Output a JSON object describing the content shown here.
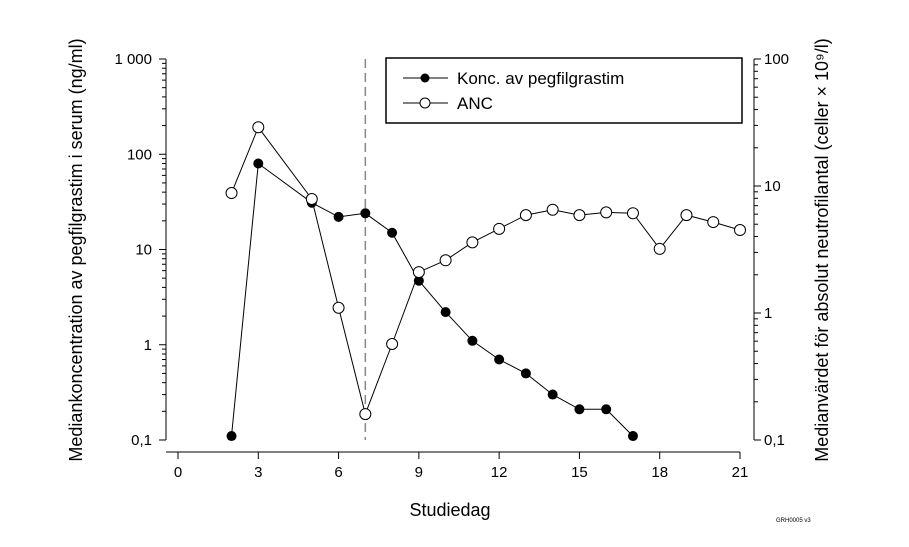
{
  "chart_data": {
    "type": "line",
    "xlabel": "Studiedag",
    "ylabel": "Mediankoncentration av pegfilgrastim i serum (ng/ml)",
    "ylabel_right": "Medianvärdet för absolut neutrofilantal (celler × 10⁹/l)",
    "xlim": [
      0,
      21
    ],
    "x_ticks": [
      0,
      3,
      6,
      9,
      12,
      15,
      18,
      21
    ],
    "x_tick_labels": [
      "0",
      "3",
      "6",
      "9",
      "12",
      "15",
      "18",
      "21"
    ],
    "ylim": [
      0.1,
      1000
    ],
    "y_scale": "log",
    "y_ticks": [
      0.1,
      1,
      10,
      100,
      1000
    ],
    "y_tick_labels": [
      "0,1",
      "1",
      "10",
      "100",
      "1 000"
    ],
    "ylim_right": [
      0.1,
      100
    ],
    "y_scale_right": "log",
    "y_ticks_right": [
      0.1,
      1,
      10,
      100
    ],
    "y_tick_labels_right": [
      "0,1",
      "1",
      "10",
      "100"
    ],
    "vertical_reference_line": {
      "x": 7,
      "style": "dashed"
    },
    "legend_position": "top-right",
    "series": [
      {
        "name": "Konc. av pegfilgrastim",
        "axis": "left",
        "marker": "filled-circle",
        "x": [
          2,
          3,
          5,
          6,
          7,
          8,
          9,
          10,
          11,
          12,
          13,
          14,
          15,
          16,
          17
        ],
        "values": [
          0.11,
          80,
          31,
          22,
          24,
          15,
          4.7,
          2.2,
          1.1,
          0.7,
          0.5,
          0.3,
          0.21,
          0.21,
          0.11
        ]
      },
      {
        "name": "ANC",
        "axis": "right",
        "marker": "open-circle",
        "x": [
          2,
          3,
          5,
          6,
          7,
          8,
          9,
          10,
          11,
          12,
          13,
          14,
          15,
          16,
          17,
          18,
          19,
          20,
          21
        ],
        "values": [
          8.8,
          29,
          7.9,
          1.1,
          0.16,
          0.57,
          2.1,
          2.6,
          3.6,
          4.6,
          5.9,
          6.5,
          5.9,
          6.2,
          6.1,
          3.2,
          5.9,
          5.2,
          4.5
        ]
      }
    ]
  },
  "figure_code": "GRH0005 v3",
  "colors": {
    "line": "#000000",
    "reference_line": "#888888",
    "open_marker_fill": "#ffffff"
  }
}
